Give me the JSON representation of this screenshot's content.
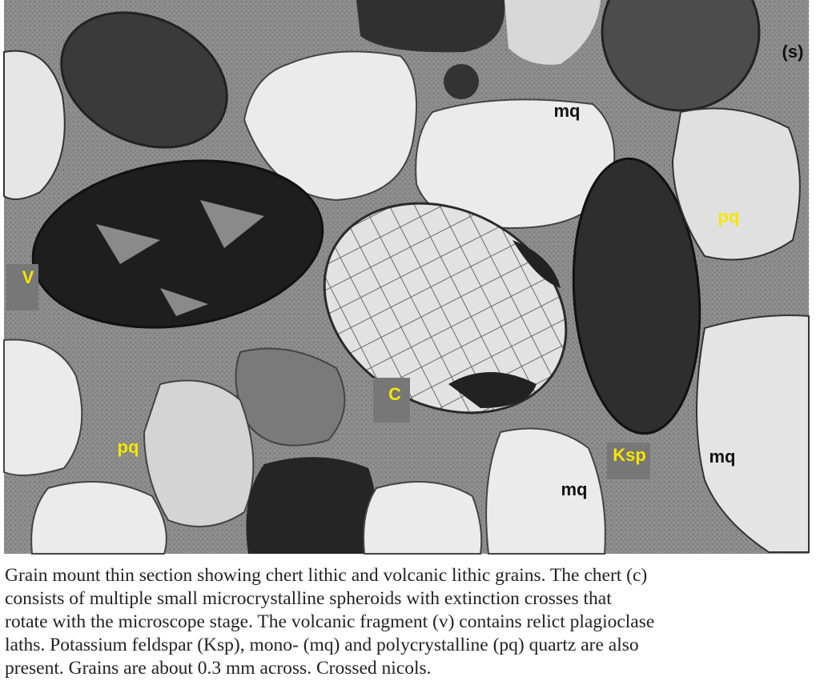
{
  "labels": [
    "mq",
    "pq",
    "V",
    "C",
    "pq",
    "Ksp",
    "mq",
    "mq",
    "(s)"
  ],
  "caption": [
    "Grain mount thin section showing chert lithic and volcanic lithic grains. The chert (c)",
    "consists of multiple small microcrystalline spheroids with extinction crosses that",
    "rotate with the microscope stage. The volcanic fragment (v) contains relict plagioclase",
    "laths. Potassium feldspar (Ksp), mono- (mq) and polycrystalline (pq) quartz are also",
    "present. Grains are about 0.3 mm across. Crossed nicols."
  ]
}
